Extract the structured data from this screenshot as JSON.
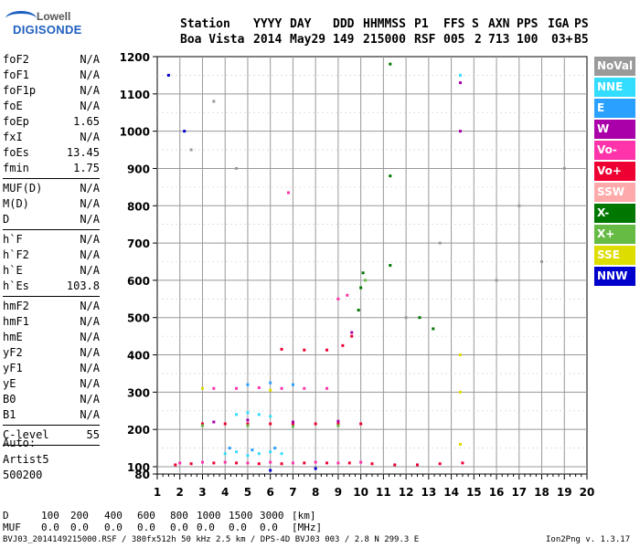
{
  "logo": {
    "top": "Lowell",
    "bottom": "DIGISONDE"
  },
  "header": {
    "row1": [
      "Station",
      "YYYY",
      "DAY",
      "DDD",
      "HHMMSS",
      "P1",
      "FFS",
      "S",
      "AXN",
      "PPS",
      "IGA",
      "PS"
    ],
    "row2": [
      "Boa Vista",
      "2014",
      "May29",
      "149",
      "215000",
      "RSF",
      "005",
      "2",
      "713",
      "100",
      "03+",
      "B5"
    ]
  },
  "params": [
    [
      [
        "foF2",
        "N/A"
      ],
      [
        "foF1",
        "N/A"
      ],
      [
        "foF1p",
        "N/A"
      ],
      [
        "foE",
        "N/A"
      ],
      [
        "foEp",
        "1.65"
      ],
      [
        "fxI",
        "N/A"
      ],
      [
        "foEs",
        "13.45"
      ],
      [
        "fmin",
        "1.75"
      ]
    ],
    [
      [
        "MUF(D)",
        "N/A"
      ],
      [
        "M(D)",
        "N/A"
      ],
      [
        "D",
        "N/A"
      ]
    ],
    [
      [
        "h`F",
        "N/A"
      ],
      [
        "h`F2",
        "N/A"
      ],
      [
        "h`E",
        "N/A"
      ],
      [
        "h`Es",
        "103.8"
      ]
    ],
    [
      [
        "hmF2",
        "N/A"
      ],
      [
        "hmF1",
        "N/A"
      ],
      [
        "hmE",
        "N/A"
      ],
      [
        "yF2",
        "N/A"
      ],
      [
        "yF1",
        "N/A"
      ],
      [
        "yE",
        "N/A"
      ],
      [
        "B0",
        "N/A"
      ],
      [
        "B1",
        "N/A"
      ]
    ],
    [
      [
        "C-level",
        "55"
      ]
    ]
  ],
  "auto": [
    "Auto:",
    "Artist5",
    "500200"
  ],
  "legend": [
    {
      "label": "NoVal",
      "color": "#9a9a9a"
    },
    {
      "label": "NNE",
      "color": "#33ddff"
    },
    {
      "label": "E",
      "color": "#2aa0ff"
    },
    {
      "label": "W",
      "color": "#aa00aa"
    },
    {
      "label": "Vo-",
      "color": "#ff33aa"
    },
    {
      "label": "Vo+",
      "color": "#ee0033"
    },
    {
      "label": "SSW",
      "color": "#ffaaaa"
    },
    {
      "label": "X-",
      "color": "#007700"
    },
    {
      "label": "X+",
      "color": "#66bb44"
    },
    {
      "label": "SSE",
      "color": "#dddd00"
    },
    {
      "label": "NNW",
      "color": "#0000cc"
    }
  ],
  "bottom": {
    "d_label": "D",
    "d_values": [
      "100",
      "200",
      "400",
      "600",
      "800",
      "1000",
      "1500",
      "3000",
      "[km]"
    ],
    "muf_label": "MUF",
    "muf_values": [
      "0.0",
      "0.0",
      "0.0",
      "0.0",
      "0.0",
      "0.0",
      "0.0",
      "0.0",
      "[MHz]"
    ]
  },
  "footer": {
    "left": "BVJ03_2014149215000.RSF / 380fx512h 50 kHz 2.5 km / DPS-4D BVJ03 003 / 2.8 N 299.3 E",
    "right": "Ion2Png v. 1.3.17"
  },
  "chart_data": {
    "type": "scatter",
    "xlim": [
      1,
      20
    ],
    "ylim": [
      80,
      1200
    ],
    "x_ticks": [
      "1",
      "2",
      "3",
      "4",
      "5",
      "6",
      "7",
      "8",
      "9",
      "10",
      "11",
      "12",
      "13",
      "14",
      "15",
      "16",
      "17",
      "18",
      "19",
      "20"
    ],
    "y_ticks": [
      "80",
      "100",
      "200",
      "300",
      "400",
      "500",
      "600",
      "700",
      "800",
      "900",
      "1000",
      "1100",
      "1200"
    ],
    "grid": true,
    "series": [
      {
        "name": "Vo+",
        "color": "#ee0033",
        "points": [
          [
            1.8,
            105
          ],
          [
            2.5,
            108
          ],
          [
            3.5,
            110
          ],
          [
            4.5,
            110
          ],
          [
            5.5,
            108
          ],
          [
            6.5,
            108
          ],
          [
            7.5,
            110
          ],
          [
            8.5,
            110
          ],
          [
            9.5,
            110
          ],
          [
            10.5,
            108
          ],
          [
            11.5,
            105
          ],
          [
            12.5,
            105
          ],
          [
            13.5,
            108
          ],
          [
            14.5,
            110
          ],
          [
            3,
            215
          ],
          [
            4,
            215
          ],
          [
            5,
            215
          ],
          [
            6,
            215
          ],
          [
            7,
            215
          ],
          [
            8,
            215
          ],
          [
            9,
            215
          ],
          [
            10,
            215
          ],
          [
            6.5,
            415
          ],
          [
            7.5,
            413
          ],
          [
            8.5,
            413
          ],
          [
            9.2,
            425
          ],
          [
            9.6,
            450
          ]
        ]
      },
      {
        "name": "Vo-",
        "color": "#ff33aa",
        "points": [
          [
            2,
            110
          ],
          [
            3,
            112
          ],
          [
            4,
            112
          ],
          [
            5,
            110
          ],
          [
            6,
            112
          ],
          [
            7,
            110
          ],
          [
            8,
            112
          ],
          [
            9,
            110
          ],
          [
            10,
            112
          ],
          [
            3.5,
            310
          ],
          [
            4.5,
            310
          ],
          [
            5.5,
            312
          ],
          [
            6.5,
            310
          ],
          [
            7.5,
            310
          ],
          [
            8.5,
            310
          ],
          [
            9,
            550
          ],
          [
            9.4,
            560
          ],
          [
            6.8,
            835
          ]
        ]
      },
      {
        "name": "NNE",
        "color": "#33ddff",
        "points": [
          [
            4,
            135
          ],
          [
            4.5,
            140
          ],
          [
            5,
            130
          ],
          [
            5.5,
            135
          ],
          [
            6,
            140
          ],
          [
            6.5,
            135
          ],
          [
            4.5,
            240
          ],
          [
            5,
            245
          ],
          [
            5.5,
            240
          ],
          [
            6,
            235
          ],
          [
            14.4,
            1150
          ]
        ]
      },
      {
        "name": "E",
        "color": "#2aa0ff",
        "points": [
          [
            4.2,
            150
          ],
          [
            5.2,
            145
          ],
          [
            6.2,
            150
          ],
          [
            5,
            320
          ],
          [
            6,
            325
          ],
          [
            7,
            320
          ]
        ]
      },
      {
        "name": "W",
        "color": "#aa00aa",
        "points": [
          [
            3.5,
            220
          ],
          [
            5,
            225
          ],
          [
            7,
            220
          ],
          [
            9,
            222
          ],
          [
            9.6,
            460
          ],
          [
            14.4,
            1000
          ],
          [
            14.4,
            1130
          ]
        ]
      },
      {
        "name": "X-",
        "color": "#007700",
        "points": [
          [
            10,
            580
          ],
          [
            10.1,
            620
          ],
          [
            9.9,
            520
          ],
          [
            11.3,
            1180
          ],
          [
            11.3,
            880
          ],
          [
            11.3,
            640
          ],
          [
            12.6,
            500
          ],
          [
            13.2,
            470
          ]
        ]
      },
      {
        "name": "X+",
        "color": "#66bb44",
        "points": [
          [
            3,
            210
          ],
          [
            5,
            210
          ],
          [
            7,
            208
          ],
          [
            9,
            210
          ],
          [
            10.2,
            600
          ]
        ]
      },
      {
        "name": "SSE",
        "color": "#dddd00",
        "points": [
          [
            14.4,
            400
          ],
          [
            14.4,
            300
          ],
          [
            14.4,
            160
          ],
          [
            3,
            310
          ],
          [
            6,
            305
          ]
        ]
      },
      {
        "name": "NNW",
        "color": "#0000cc",
        "points": [
          [
            1.5,
            1150
          ],
          [
            2.2,
            1000
          ],
          [
            6,
            90
          ],
          [
            8,
            95
          ]
        ]
      },
      {
        "name": "NoVal",
        "color": "#9a9a9a",
        "points": [
          [
            2.5,
            950
          ],
          [
            3.5,
            1080
          ],
          [
            4.5,
            900
          ],
          [
            12,
            500
          ],
          [
            13.5,
            700
          ],
          [
            16,
            600
          ],
          [
            17,
            800
          ],
          [
            18,
            650
          ],
          [
            19,
            900
          ]
        ]
      }
    ]
  }
}
